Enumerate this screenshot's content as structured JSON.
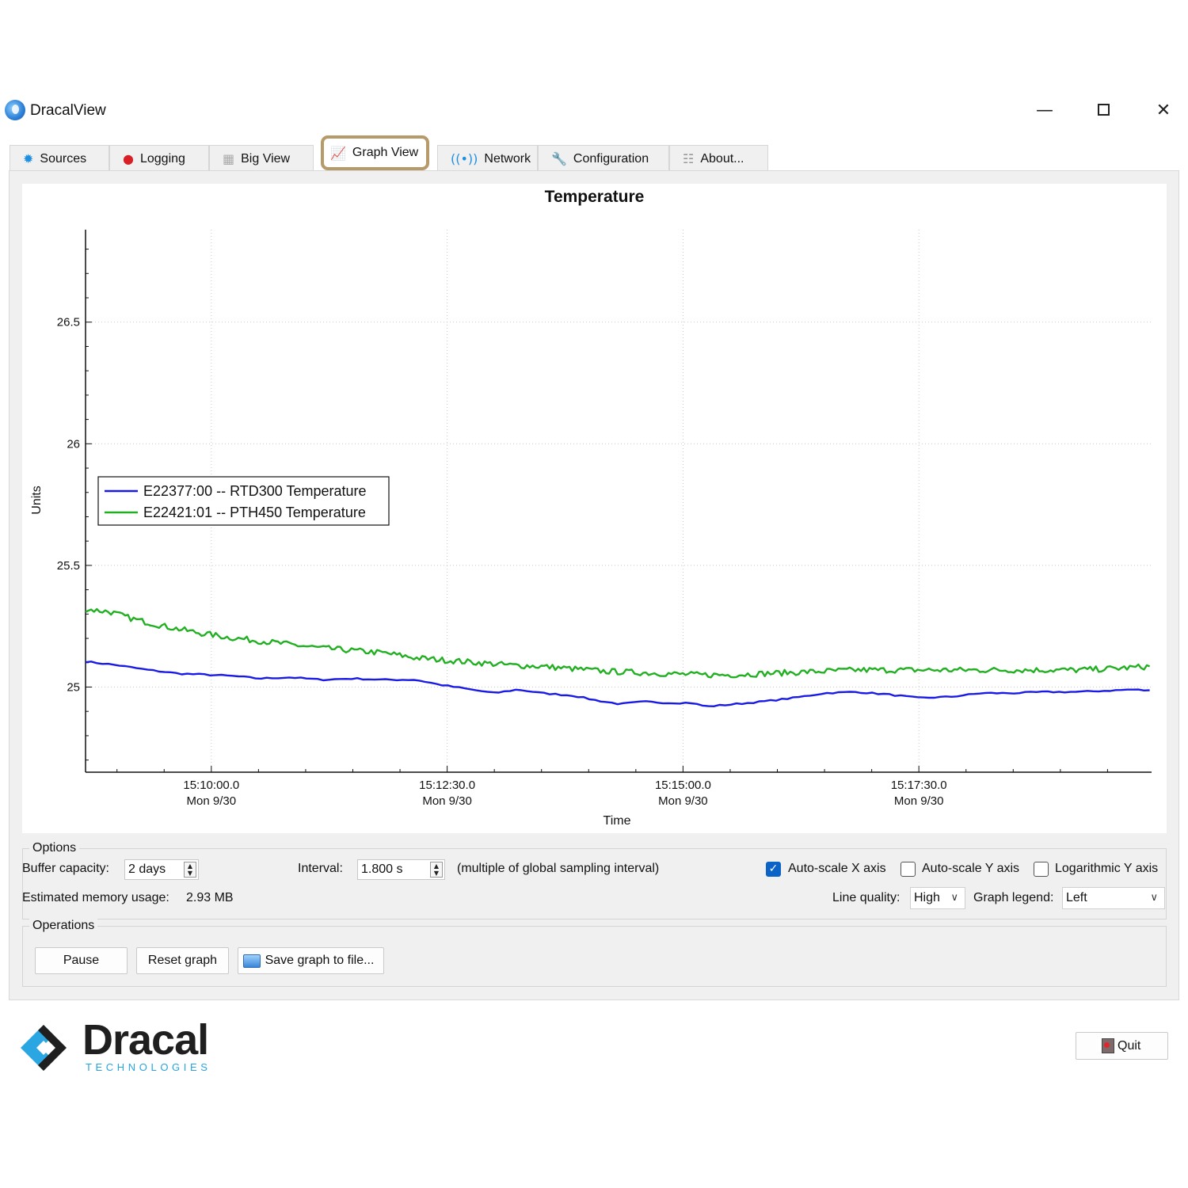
{
  "window": {
    "title": "DracalView"
  },
  "tabs": [
    {
      "label": "Sources",
      "icon": "sources-icon"
    },
    {
      "label": "Logging",
      "icon": "record-icon"
    },
    {
      "label": "Big View",
      "icon": "big-view-icon"
    },
    {
      "label": "Graph View",
      "icon": "graph-icon",
      "active": true
    },
    {
      "label": "Network",
      "icon": "network-icon"
    },
    {
      "label": "Configuration",
      "icon": "wrench-icon"
    },
    {
      "label": "About...",
      "icon": "about-icon"
    }
  ],
  "chart_data": {
    "type": "line",
    "title": "Temperature",
    "xlabel": "Time",
    "ylabel": "Units",
    "x_ticks": [
      {
        "time": "15:10:00.0",
        "date": "Mon 9/30",
        "seconds": 600
      },
      {
        "time": "15:12:30.0",
        "date": "Mon 9/30",
        "seconds": 750
      },
      {
        "time": "15:15:00.0",
        "date": "Mon 9/30",
        "seconds": 900
      },
      {
        "time": "15:17:30.0",
        "date": "Mon 9/30",
        "seconds": 1050
      }
    ],
    "xlim_seconds_after_15_00": [
      520,
      1198
    ],
    "y_ticks": [
      "26.5",
      "26",
      "25.5",
      "25"
    ],
    "y_tick_values": [
      26.5,
      26.0,
      25.5,
      25.0
    ],
    "ylim": [
      24.65,
      26.88
    ],
    "grid": true,
    "legend_position": "left",
    "series": [
      {
        "name": "E22377:00 -- RTD300 Temperature",
        "color": "#1a1ae6",
        "noise": 0.003,
        "points": [
          [
            520,
            25.105
          ],
          [
            540,
            25.09
          ],
          [
            560,
            25.07
          ],
          [
            580,
            25.055
          ],
          [
            600,
            25.05
          ],
          [
            615,
            25.045
          ],
          [
            630,
            25.035
          ],
          [
            650,
            25.04
          ],
          [
            670,
            25.03
          ],
          [
            690,
            25.035
          ],
          [
            710,
            25.03
          ],
          [
            730,
            25.03
          ],
          [
            745,
            25.01
          ],
          [
            760,
            24.995
          ],
          [
            780,
            24.975
          ],
          [
            795,
            24.99
          ],
          [
            810,
            24.975
          ],
          [
            830,
            24.965
          ],
          [
            845,
            24.945
          ],
          [
            860,
            24.93
          ],
          [
            875,
            24.94
          ],
          [
            890,
            24.935
          ],
          [
            905,
            24.935
          ],
          [
            915,
            24.92
          ],
          [
            930,
            24.928
          ],
          [
            950,
            24.94
          ],
          [
            970,
            24.955
          ],
          [
            990,
            24.975
          ],
          [
            1010,
            24.98
          ],
          [
            1030,
            24.97
          ],
          [
            1050,
            24.955
          ],
          [
            1070,
            24.96
          ],
          [
            1090,
            24.975
          ],
          [
            1110,
            24.975
          ],
          [
            1130,
            24.98
          ],
          [
            1150,
            24.98
          ],
          [
            1170,
            24.985
          ],
          [
            1185,
            24.99
          ],
          [
            1198,
            24.985
          ]
        ]
      },
      {
        "name": "E22421:01 -- PTH450 Temperature",
        "color": "#22b022",
        "noise": 0.012,
        "points": [
          [
            520,
            25.32
          ],
          [
            535,
            25.31
          ],
          [
            550,
            25.28
          ],
          [
            570,
            25.25
          ],
          [
            590,
            25.225
          ],
          [
            610,
            25.205
          ],
          [
            630,
            25.19
          ],
          [
            650,
            25.175
          ],
          [
            670,
            25.16
          ],
          [
            690,
            25.15
          ],
          [
            710,
            25.14
          ],
          [
            730,
            25.12
          ],
          [
            750,
            25.11
          ],
          [
            770,
            25.1
          ],
          [
            790,
            25.09
          ],
          [
            810,
            25.085
          ],
          [
            830,
            25.075
          ],
          [
            850,
            25.065
          ],
          [
            870,
            25.06
          ],
          [
            890,
            25.055
          ],
          [
            910,
            25.05
          ],
          [
            930,
            25.05
          ],
          [
            950,
            25.055
          ],
          [
            970,
            25.06
          ],
          [
            990,
            25.065
          ],
          [
            1010,
            25.07
          ],
          [
            1030,
            25.07
          ],
          [
            1050,
            25.07
          ],
          [
            1070,
            25.07
          ],
          [
            1090,
            25.07
          ],
          [
            1110,
            25.07
          ],
          [
            1130,
            25.07
          ],
          [
            1150,
            25.07
          ],
          [
            1170,
            25.075
          ],
          [
            1185,
            25.08
          ],
          [
            1198,
            25.085
          ]
        ]
      }
    ]
  },
  "options": {
    "group_title": "Options",
    "buffer_label": "Buffer capacity:",
    "buffer_value": "2 days",
    "interval_label": "Interval:",
    "interval_value": "1.800 s",
    "interval_note": "(multiple of global sampling interval)",
    "autoscale_x_label": "Auto-scale X axis",
    "autoscale_x_checked": true,
    "autoscale_y_label": "Auto-scale Y axis",
    "autoscale_y_checked": false,
    "log_y_label": "Logarithmic Y axis",
    "log_y_checked": false,
    "memory_label": "Estimated memory usage:",
    "memory_value": "2.93 MB",
    "line_quality_label": "Line quality:",
    "line_quality_value": "High",
    "legend_label": "Graph legend:",
    "legend_value": "Left"
  },
  "operations": {
    "group_title": "Operations",
    "pause_label": "Pause",
    "reset_label": "Reset graph",
    "save_label": "Save graph to file..."
  },
  "footer": {
    "logo_word": "Dracal",
    "logo_sub": "TECHNOLOGIES",
    "quit_label": "Quit"
  },
  "colors": {
    "accent": "#0b63c7",
    "active_tab_border": "#b79a6a",
    "logo_blue": "#27a4e0"
  }
}
